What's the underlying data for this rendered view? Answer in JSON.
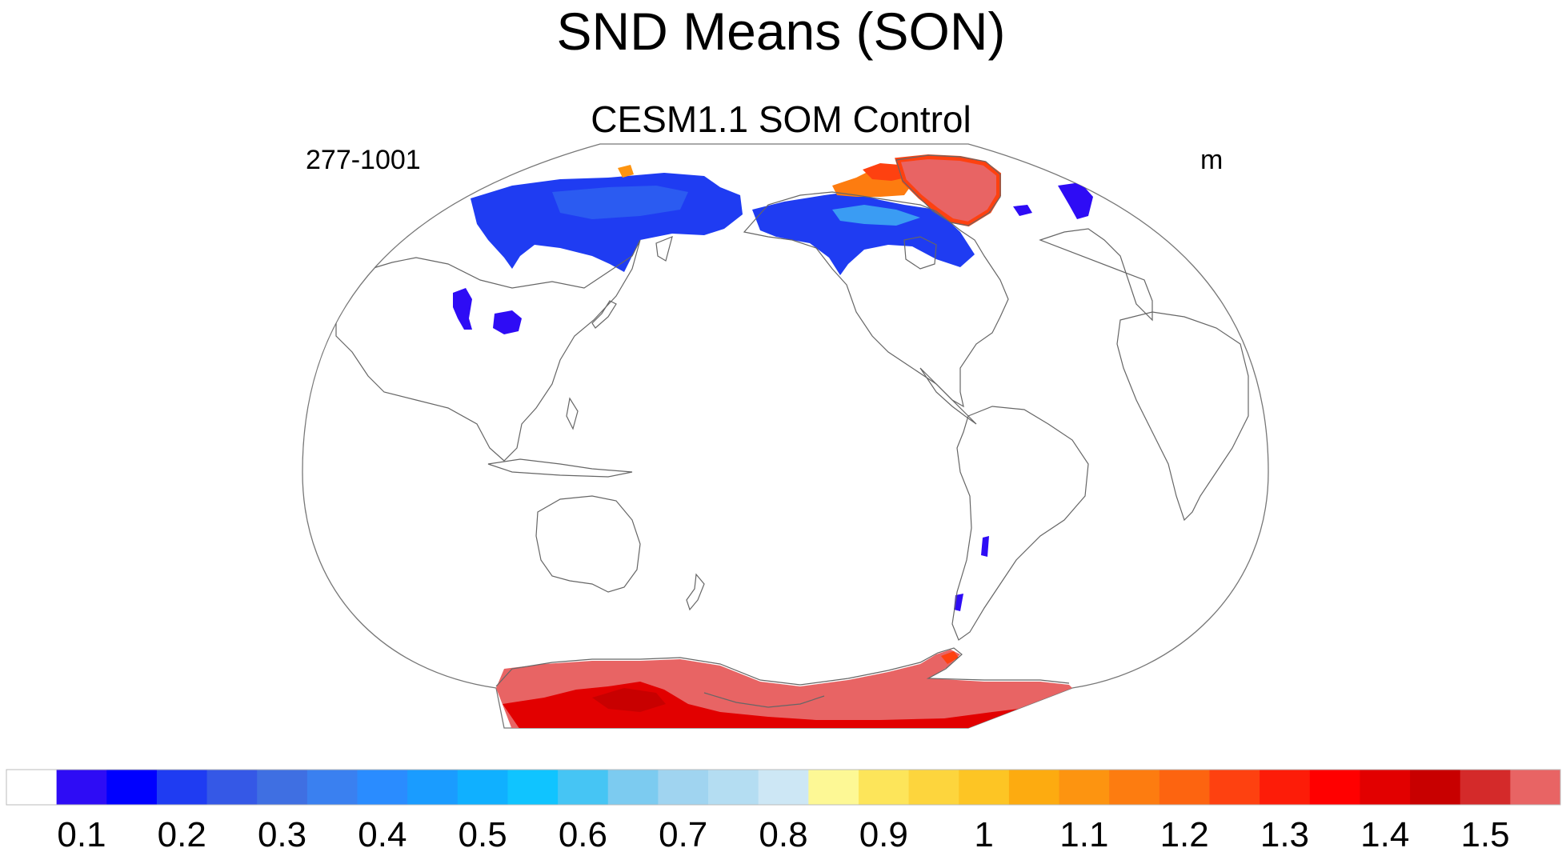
{
  "title": "SND Means (SON)",
  "subtitle": "CESM1.1 SOM Control",
  "left_label": "277-1001",
  "right_label": "m",
  "colorbar": {
    "colors": [
      "#ffffff",
      "#2e0cf5",
      "#0000ff",
      "#1f3cf2",
      "#3558e6",
      "#3f6fe2",
      "#3a80f0",
      "#2a8cff",
      "#1a9cff",
      "#10b0ff",
      "#10c4ff",
      "#46c5f4",
      "#7ccbf0",
      "#a0d4f0",
      "#b4ddf2",
      "#cde7f5",
      "#fdf895",
      "#fde55a",
      "#fdd53d",
      "#fdc524",
      "#fdab10",
      "#fd9410",
      "#fd7c10",
      "#fd6410",
      "#fe4110",
      "#fd1c08",
      "#ff0000",
      "#e20000",
      "#c80000",
      "#d42a2a",
      "#e86464"
    ],
    "tick_labels": [
      "0.1",
      "0.2",
      "0.3",
      "0.4",
      "0.5",
      "0.6",
      "0.7",
      "0.8",
      "0.9",
      "1",
      "1.1",
      "1.2",
      "1.3",
      "1.4",
      "1.5"
    ]
  },
  "map": {
    "projection": "robinson",
    "central_meridian": "180",
    "variable": "snow depth",
    "regions": [
      {
        "name": "Siberia",
        "level": "0.1-0.2",
        "color": "#1f3cf2"
      },
      {
        "name": "Central Asia highlands",
        "level": "0.1",
        "color": "#2e0cf5"
      },
      {
        "name": "North America",
        "level": "0.1-0.3",
        "color": "#1f3cf2"
      },
      {
        "name": "Canadian Arctic islands",
        "level": "1.1-1.3",
        "color": "#fd7c10"
      },
      {
        "name": "Greenland",
        "level": "1.5+",
        "color": "#e86464"
      },
      {
        "name": "Antarctica",
        "level": "1.4-1.5+",
        "color": "#e86464"
      },
      {
        "name": "Southern Andes",
        "level": "0.1",
        "color": "#2e0cf5"
      }
    ]
  }
}
